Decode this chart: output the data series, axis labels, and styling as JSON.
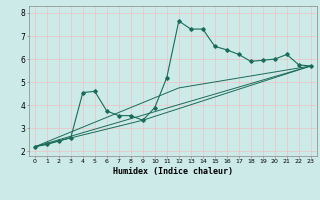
{
  "title": "",
  "xlabel": "Humidex (Indice chaleur)",
  "background_color": "#cceae7",
  "grid_color": "#e8c8c8",
  "line_color": "#1a6b5a",
  "xlim": [
    -0.5,
    23.5
  ],
  "ylim": [
    1.8,
    8.3
  ],
  "xticks": [
    0,
    1,
    2,
    3,
    4,
    5,
    6,
    7,
    8,
    9,
    10,
    11,
    12,
    13,
    14,
    15,
    16,
    17,
    18,
    19,
    20,
    21,
    22,
    23
  ],
  "yticks": [
    2,
    3,
    4,
    5,
    6,
    7,
    8
  ],
  "line1_x": [
    0,
    1,
    2,
    3,
    4,
    5,
    6,
    7,
    8,
    9,
    10,
    11,
    12,
    13,
    14,
    15,
    16,
    17,
    18,
    19,
    20,
    21,
    22,
    23
  ],
  "line1_y": [
    2.2,
    2.3,
    2.45,
    2.6,
    4.55,
    4.6,
    3.75,
    3.55,
    3.55,
    3.35,
    3.9,
    5.2,
    7.65,
    7.3,
    7.3,
    6.55,
    6.4,
    6.2,
    5.9,
    5.95,
    6.0,
    6.2,
    5.75,
    5.7
  ],
  "line2_x": [
    0,
    23
  ],
  "line2_y": [
    2.2,
    5.7
  ],
  "line3_x": [
    0,
    12,
    23
  ],
  "line3_y": [
    2.2,
    4.75,
    5.7
  ],
  "line4_x": [
    0,
    9,
    23
  ],
  "line4_y": [
    2.2,
    3.35,
    5.7
  ]
}
